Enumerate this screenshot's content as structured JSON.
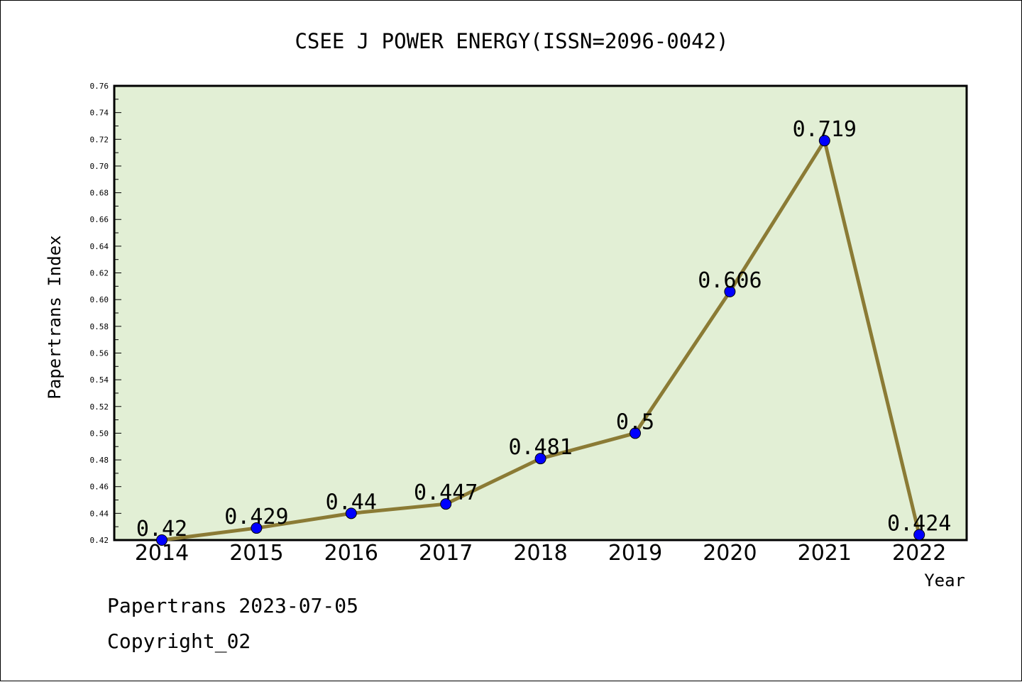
{
  "chart_data": {
    "type": "line",
    "title": "CSEE J POWER ENERGY(ISSN=2096-0042)",
    "xlabel": "Year",
    "ylabel": "Papertrans Index",
    "categories": [
      "2014",
      "2015",
      "2016",
      "2017",
      "2018",
      "2019",
      "2020",
      "2021",
      "2022"
    ],
    "series": [
      {
        "values": [
          0.42,
          0.429,
          0.44,
          0.447,
          0.481,
          0.5,
          0.606,
          0.719,
          0.424
        ],
        "labels": [
          "0.42",
          "0.429",
          "0.44",
          "0.447",
          "0.481",
          "0.5",
          "0.606",
          "0.719",
          "0.424"
        ]
      }
    ],
    "ylim": [
      0.42,
      0.76
    ],
    "yticks": [
      "0.42",
      "0.44",
      "0.46",
      "0.48",
      "0.50",
      "0.52",
      "0.54",
      "0.56",
      "0.58",
      "0.60",
      "0.62",
      "0.64",
      "0.66",
      "0.68",
      "0.70",
      "0.72",
      "0.74",
      "0.76"
    ],
    "grid": false,
    "colors": {
      "plot_background": "#e2efd5",
      "line": "#8b7b35",
      "marker": "#0000ff"
    }
  },
  "footer": {
    "date_text": "Papertrans 2023-07-05",
    "copyright_text": "Copyright_02"
  }
}
